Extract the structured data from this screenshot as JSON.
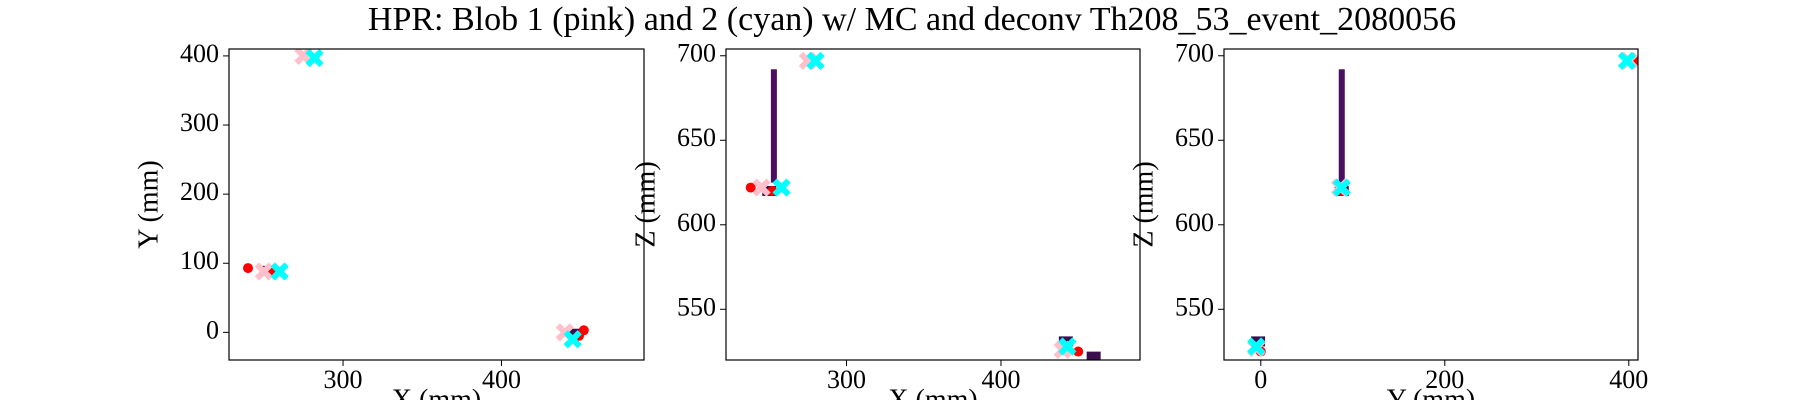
{
  "title": "HPR: Blob 1 (pink) and 2 (cyan) w/ MC and deconv Th208_53_event_2080056",
  "chart_data": [
    {
      "type": "scatter",
      "xlabel": "X (mm)",
      "ylabel": "Y (mm)",
      "xlim": [
        228,
        490
      ],
      "ylim": [
        -40,
        410
      ],
      "xticks": [
        300,
        400
      ],
      "yticks": [
        0,
        100,
        200,
        300,
        400
      ],
      "series": [
        {
          "marker": "square",
          "color": "#3b0f4f",
          "x": [
            253,
            447
          ],
          "values": [
            89,
            -2
          ]
        },
        {
          "marker": "dot",
          "color": "#ff0000",
          "x": [
            240,
            256,
            452,
            449
          ],
          "values": [
            93,
            90,
            3,
            -5
          ]
        },
        {
          "marker": "x",
          "color": "#ffc0cb",
          "x": [
            275,
            250,
            440
          ],
          "values": [
            400,
            88,
            0
          ]
        },
        {
          "marker": "x",
          "color": "#00ffff",
          "x": [
            282,
            260,
            445
          ],
          "values": [
            397,
            88,
            -10
          ]
        }
      ]
    },
    {
      "type": "scatter",
      "xlabel": "X (mm)",
      "ylabel": "Z (mm)",
      "xlim": [
        222,
        490
      ],
      "ylim": [
        520,
        704
      ],
      "xticks": [
        300,
        400
      ],
      "yticks": [
        550,
        600,
        650,
        700
      ],
      "series": [
        {
          "marker": "vbar",
          "color": "#4a0f5e",
          "x": [
            253
          ],
          "values": [
            692
          ],
          "base": [
            625
          ]
        },
        {
          "marker": "square",
          "color": "#3b0f4f",
          "x": [
            250,
            442,
            460
          ],
          "values": [
            620,
            531,
            522
          ]
        },
        {
          "marker": "dot",
          "color": "#ff0000",
          "x": [
            238,
            252,
            450
          ],
          "values": [
            622,
            620,
            525
          ]
        },
        {
          "marker": "x",
          "color": "#ffc0cb",
          "x": [
            245,
            275,
            440
          ],
          "values": [
            622,
            697,
            526
          ]
        },
        {
          "marker": "x",
          "color": "#00ffff",
          "x": [
            258,
            280,
            443
          ],
          "values": [
            622,
            697,
            528
          ]
        }
      ]
    },
    {
      "type": "scatter",
      "xlabel": "Y (mm)",
      "ylabel": "Z (mm)",
      "xlim": [
        -40,
        410
      ],
      "ylim": [
        520,
        704
      ],
      "xticks": [
        0,
        200,
        400
      ],
      "yticks": [
        550,
        600,
        650,
        700
      ],
      "series": [
        {
          "marker": "vbar",
          "color": "#4a0f5e",
          "x": [
            88
          ],
          "values": [
            692
          ],
          "base": [
            625
          ]
        },
        {
          "marker": "square",
          "color": "#3b0f4f",
          "x": [
            -3,
            88
          ],
          "values": [
            531,
            620
          ]
        },
        {
          "marker": "dot",
          "color": "#ff0000",
          "x": [
            0,
            88,
            408
          ],
          "values": [
            525,
            620,
            697
          ]
        },
        {
          "marker": "x",
          "color": "#ffc0cb",
          "x": [
            -5,
            86,
            400
          ],
          "values": [
            527,
            622,
            697
          ]
        },
        {
          "marker": "x",
          "color": "#00ffff",
          "x": [
            -5,
            88,
            398
          ],
          "values": [
            528,
            622,
            697
          ]
        }
      ]
    }
  ]
}
